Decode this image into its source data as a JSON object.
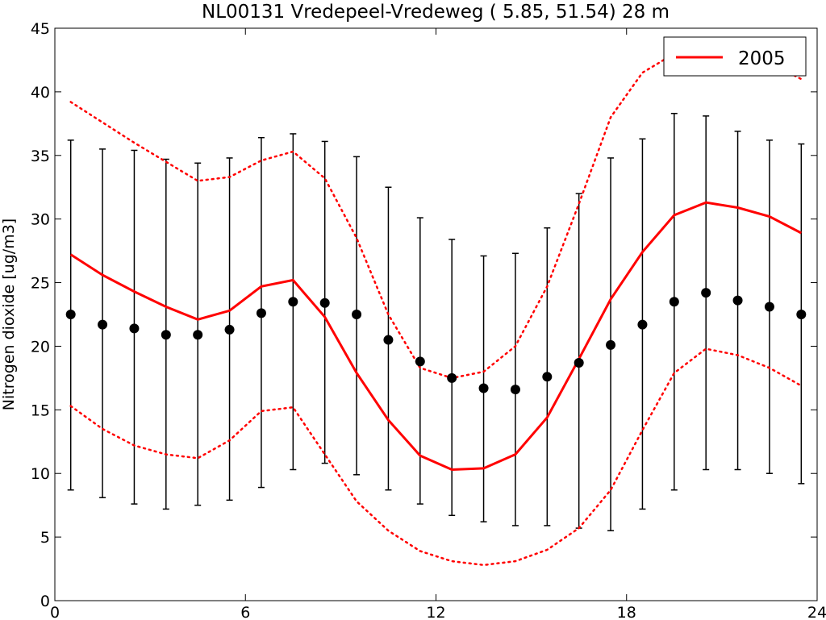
{
  "chart_data": {
    "type": "line",
    "title": "NL00131 Vredepeel-Vredeweg (    5.85,    51.54)    28 m",
    "xlabel": "",
    "ylabel": "Nitrogen dioxide [ug/m3]",
    "xlim": [
      0,
      24
    ],
    "ylim": [
      0,
      45
    ],
    "xticks": [
      0,
      6,
      12,
      18,
      24
    ],
    "yticks": [
      0,
      5,
      10,
      15,
      20,
      25,
      30,
      35,
      40,
      45
    ],
    "x": [
      0.5,
      1.5,
      2.5,
      3.5,
      4.5,
      5.5,
      6.5,
      7.5,
      8.5,
      9.5,
      10.5,
      11.5,
      12.5,
      13.5,
      14.5,
      15.5,
      16.5,
      17.5,
      18.5,
      19.5,
      20.5,
      21.5,
      22.5,
      23.5
    ],
    "legend": {
      "position": "top-right",
      "entries": [
        "2005"
      ]
    },
    "series": [
      {
        "name": "2005",
        "style": "solid",
        "color": "#ff0000",
        "values": [
          27.2,
          25.6,
          24.3,
          23.1,
          22.1,
          22.8,
          24.7,
          25.2,
          22.3,
          17.9,
          14.2,
          11.4,
          10.3,
          10.4,
          11.5,
          14.4,
          19.0,
          23.7,
          27.4,
          30.3,
          31.3,
          30.9,
          30.2,
          28.9
        ]
      },
      {
        "style": "dotted",
        "color": "#ff0000",
        "values": [
          39.2,
          37.6,
          36.0,
          34.5,
          33.0,
          33.3,
          34.6,
          35.3,
          33.2,
          28.5,
          22.5,
          18.3,
          17.5,
          18.0,
          20.0,
          24.7,
          31.2,
          38.0,
          41.5,
          43.0,
          43.7,
          43.3,
          42.3,
          41.0
        ]
      },
      {
        "style": "dotted",
        "color": "#ff0000",
        "values": [
          15.3,
          13.5,
          12.2,
          11.5,
          11.2,
          12.6,
          14.9,
          15.2,
          11.5,
          7.8,
          5.5,
          3.9,
          3.1,
          2.8,
          3.1,
          4.0,
          5.7,
          8.7,
          13.4,
          17.9,
          19.8,
          19.3,
          18.3,
          16.9
        ]
      },
      {
        "name": "mean",
        "style": "markers",
        "color": "#000000",
        "values": [
          22.5,
          21.7,
          21.4,
          20.9,
          20.9,
          21.3,
          22.6,
          23.5,
          23.4,
          22.5,
          20.5,
          18.8,
          17.5,
          16.7,
          16.6,
          17.6,
          18.7,
          20.1,
          21.7,
          23.5,
          24.2,
          23.6,
          23.1,
          22.5
        ],
        "error_low": [
          8.7,
          8.1,
          7.6,
          7.2,
          7.5,
          7.9,
          8.9,
          10.3,
          10.8,
          9.9,
          8.7,
          7.6,
          6.7,
          6.2,
          5.9,
          5.9,
          5.7,
          5.5,
          7.2,
          8.7,
          10.3,
          10.3,
          10.0,
          9.2
        ],
        "error_high": [
          36.2,
          35.5,
          35.4,
          34.7,
          34.4,
          34.8,
          36.4,
          36.7,
          36.1,
          34.9,
          32.5,
          30.1,
          28.4,
          27.1,
          27.3,
          29.3,
          32.0,
          34.8,
          36.3,
          38.3,
          38.1,
          36.9,
          36.2,
          35.9
        ]
      }
    ]
  }
}
